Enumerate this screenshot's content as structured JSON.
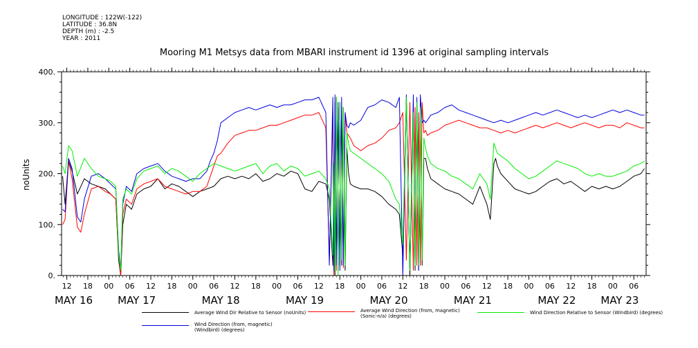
{
  "header": {
    "longitude": "LONGITUDE : 122W(-122)",
    "latitude": "LATITUDE : 36.8N",
    "depth": "DEPTH (m) : -2.5",
    "year": "YEAR : 2011"
  },
  "chart_data": {
    "type": "line",
    "title": "Mooring M1 Metsys data from MBARI instrument id 1396 at original sampling intervals",
    "ylabel": "noUnits",
    "ylim": [
      0,
      400
    ],
    "yticks": [
      0,
      100,
      200,
      300,
      400
    ],
    "ytick_labels": [
      "0.",
      "100.",
      "200.",
      "300.",
      "400."
    ],
    "xlim_hours": [
      10.5,
      177.5
    ],
    "x_unit": "hours since 2011-05-16 00:00",
    "xtick_hour_labels": [
      {
        "h": 12,
        "label": "12"
      },
      {
        "h": 18,
        "label": "18"
      },
      {
        "h": 24,
        "label": "00"
      },
      {
        "h": 30,
        "label": "06"
      },
      {
        "h": 36,
        "label": "12"
      },
      {
        "h": 42,
        "label": "18"
      },
      {
        "h": 48,
        "label": "00"
      },
      {
        "h": 54,
        "label": "06"
      },
      {
        "h": 60,
        "label": "12"
      },
      {
        "h": 66,
        "label": "18"
      },
      {
        "h": 72,
        "label": "00"
      },
      {
        "h": 78,
        "label": "06"
      },
      {
        "h": 84,
        "label": "12"
      },
      {
        "h": 90,
        "label": "18"
      },
      {
        "h": 96,
        "label": "00"
      },
      {
        "h": 102,
        "label": "06"
      },
      {
        "h": 108,
        "label": "12"
      },
      {
        "h": 114,
        "label": "18"
      },
      {
        "h": 120,
        "label": "00"
      },
      {
        "h": 126,
        "label": "06"
      },
      {
        "h": 132,
        "label": "12"
      },
      {
        "h": 138,
        "label": "18"
      },
      {
        "h": 144,
        "label": "00"
      },
      {
        "h": 150,
        "label": "06"
      },
      {
        "h": 156,
        "label": "12"
      },
      {
        "h": 162,
        "label": "18"
      },
      {
        "h": 168,
        "label": "00"
      },
      {
        "h": 174,
        "label": "06"
      }
    ],
    "xdate_labels": [
      {
        "h": 12,
        "label": "MAY 16"
      },
      {
        "h": 30,
        "label": "MAY 17"
      },
      {
        "h": 54,
        "label": "MAY 18"
      },
      {
        "h": 78,
        "label": "MAY 19"
      },
      {
        "h": 102,
        "label": "MAY 20"
      },
      {
        "h": 126,
        "label": "MAY 21"
      },
      {
        "h": 150,
        "label": "MAY 22"
      },
      {
        "h": 168,
        "label": "MAY 23"
      }
    ],
    "series": [
      {
        "name": "Average Wind Dir Relative to Sensor (noUnits)",
        "color": "#000000",
        "x": [
          10.8,
          11.5,
          12.5,
          13.5,
          15,
          17,
          19,
          21,
          23,
          24.5,
          26,
          26.8,
          27.4,
          28,
          29,
          30.5,
          32,
          34,
          36,
          38,
          40,
          42,
          44,
          46,
          48,
          50,
          52,
          54,
          56,
          58,
          60,
          62,
          64,
          66,
          68,
          70,
          72,
          74,
          76,
          78,
          80,
          82,
          84,
          86,
          87,
          88,
          88.3,
          88.6,
          89,
          89.5,
          90,
          90.5,
          91,
          91.5,
          92,
          92.5,
          93,
          94,
          96,
          98,
          100,
          102,
          104,
          106,
          107,
          108,
          109,
          110,
          111,
          111.5,
          112,
          112.5,
          113,
          113.5,
          114,
          114.5,
          115,
          116,
          118,
          120,
          122,
          124,
          126,
          128,
          130,
          132,
          133,
          134,
          134.5,
          135,
          136,
          138,
          140,
          142,
          144,
          146,
          148,
          150,
          152,
          154,
          156,
          158,
          160,
          162,
          164,
          166,
          168,
          170,
          172,
          174,
          176,
          177
        ],
        "y": [
          195,
          140,
          225,
          205,
          160,
          190,
          180,
          175,
          170,
          160,
          150,
          30,
          0,
          100,
          140,
          130,
          160,
          170,
          175,
          190,
          170,
          180,
          175,
          165,
          155,
          165,
          170,
          175,
          190,
          195,
          190,
          195,
          190,
          200,
          185,
          190,
          200,
          195,
          205,
          200,
          170,
          165,
          185,
          180,
          150,
          20,
          200,
          0,
          350,
          10,
          340,
          20,
          330,
          10,
          250,
          200,
          180,
          175,
          170,
          170,
          165,
          155,
          140,
          130,
          120,
          40,
          350,
          0,
          320,
          10,
          340,
          10,
          320,
          20,
          230,
          230,
          210,
          190,
          180,
          170,
          165,
          160,
          150,
          140,
          175,
          140,
          110,
          220,
          230,
          215,
          200,
          185,
          170,
          165,
          160,
          165,
          175,
          185,
          190,
          180,
          185,
          175,
          165,
          175,
          170,
          175,
          170,
          175,
          185,
          195,
          200,
          210
        ]
      },
      {
        "name": "Average Wind Direction (from, magnetic) (Sonic-n/a) (degrees)",
        "color": "#ff0000",
        "x": [
          10.8,
          11.5,
          12.5,
          13.5,
          15,
          16,
          17,
          19,
          21,
          23,
          24.5,
          26,
          26.8,
          27.4,
          28,
          29,
          30.5,
          32,
          34,
          36,
          38,
          40,
          42,
          44,
          46,
          48,
          50,
          52,
          53,
          54,
          55,
          56,
          58,
          60,
          62,
          64,
          66,
          68,
          70,
          72,
          74,
          76,
          78,
          80,
          82,
          84,
          86,
          87,
          88,
          88.3,
          88.6,
          89,
          89.5,
          90,
          90.5,
          91,
          91.5,
          92,
          92.5,
          93,
          94,
          96,
          98,
          100,
          102,
          104,
          106,
          107,
          108,
          109,
          110,
          111,
          111.5,
          112,
          112.5,
          113,
          113.5,
          114,
          114.5,
          115,
          116,
          118,
          120,
          122,
          124,
          126,
          128,
          130,
          132,
          134,
          136,
          138,
          140,
          142,
          144,
          146,
          148,
          150,
          152,
          154,
          156,
          158,
          160,
          162,
          164,
          166,
          168,
          170,
          172,
          174,
          176,
          177
        ],
        "y": [
          100,
          110,
          225,
          190,
          95,
          85,
          120,
          170,
          175,
          165,
          160,
          150,
          40,
          0,
          120,
          150,
          140,
          170,
          180,
          185,
          190,
          175,
          170,
          165,
          160,
          165,
          165,
          175,
          195,
          215,
          235,
          240,
          260,
          275,
          280,
          285,
          285,
          290,
          295,
          295,
          300,
          305,
          310,
          315,
          315,
          320,
          290,
          30,
          320,
          0,
          340,
          10,
          330,
          20,
          330,
          15,
          320,
          280,
          275,
          270,
          255,
          245,
          255,
          260,
          270,
          285,
          290,
          300,
          320,
          30,
          340,
          10,
          330,
          20,
          320,
          20,
          340,
          280,
          285,
          275,
          280,
          285,
          295,
          300,
          305,
          300,
          295,
          290,
          290,
          285,
          280,
          285,
          280,
          285,
          290,
          295,
          290,
          295,
          300,
          295,
          290,
          295,
          300,
          295,
          290,
          295,
          295,
          290,
          300,
          295,
          290,
          290
        ]
      },
      {
        "name": "Wind Direction Relative to Sensor (Windbird) (degrees)",
        "color": "#00ee00",
        "x": [
          10.8,
          11.5,
          12.5,
          13.5,
          15,
          17,
          19,
          21,
          23,
          24.5,
          26,
          26.8,
          27.4,
          28,
          29,
          30.5,
          32,
          34,
          36,
          38,
          40,
          42,
          44,
          46,
          48,
          50,
          52,
          54,
          56,
          58,
          60,
          62,
          64,
          66,
          68,
          70,
          72,
          74,
          76,
          78,
          80,
          82,
          84,
          86,
          87,
          88,
          88.3,
          88.6,
          89,
          89.5,
          90,
          90.5,
          91,
          91.5,
          92,
          92.5,
          93,
          94,
          96,
          98,
          100,
          102,
          104,
          106,
          107,
          108,
          109,
          110,
          111,
          111.5,
          112,
          112.5,
          113,
          113.5,
          114,
          114.5,
          115,
          116,
          118,
          120,
          122,
          124,
          126,
          128,
          130,
          132,
          133,
          134,
          134.5,
          135,
          136,
          138,
          140,
          142,
          144,
          146,
          148,
          150,
          152,
          154,
          156,
          158,
          160,
          162,
          164,
          166,
          168,
          170,
          172,
          174,
          176,
          177
        ],
        "y": [
          215,
          200,
          255,
          245,
          195,
          230,
          210,
          195,
          190,
          185,
          175,
          40,
          10,
          150,
          170,
          160,
          190,
          205,
          210,
          215,
          200,
          210,
          205,
          195,
          185,
          200,
          210,
          220,
          215,
          210,
          205,
          210,
          215,
          220,
          200,
          215,
          220,
          205,
          215,
          210,
          195,
          200,
          205,
          190,
          170,
          40,
          220,
          10,
          350,
          0,
          340,
          30,
          330,
          20,
          280,
          260,
          245,
          240,
          230,
          220,
          210,
          200,
          185,
          150,
          140,
          60,
          350,
          10,
          320,
          20,
          340,
          20,
          330,
          30,
          270,
          250,
          235,
          220,
          210,
          205,
          195,
          190,
          180,
          170,
          200,
          180,
          150,
          260,
          250,
          240,
          235,
          225,
          210,
          200,
          190,
          195,
          205,
          215,
          225,
          220,
          215,
          210,
          200,
          195,
          200,
          195,
          195,
          200,
          205,
          215,
          220,
          225
        ]
      },
      {
        "name": "Wind Direction (from, magnetic) (Windbird) (degrees)",
        "color": "#0000dd",
        "x": [
          10.8,
          11.5,
          12.5,
          13.5,
          15,
          16,
          17,
          19,
          21,
          23,
          24.5,
          26,
          26.8,
          27.4,
          28,
          29,
          30.5,
          32,
          34,
          36,
          38,
          40,
          42,
          44,
          46,
          48,
          50,
          52,
          53,
          54,
          55,
          56,
          58,
          60,
          62,
          64,
          66,
          68,
          70,
          72,
          74,
          76,
          78,
          80,
          82,
          84,
          86,
          87,
          88,
          88.3,
          88.6,
          89,
          89.5,
          90,
          90.5,
          91,
          91.5,
          92,
          92.5,
          93,
          94,
          96,
          98,
          100,
          102,
          104,
          106,
          107,
          108,
          109,
          110,
          111,
          111.5,
          112,
          112.5,
          113,
          113.5,
          114,
          114.5,
          115,
          116,
          118,
          120,
          122,
          124,
          126,
          128,
          130,
          132,
          134,
          136,
          138,
          140,
          142,
          144,
          146,
          148,
          150,
          152,
          154,
          156,
          158,
          160,
          162,
          164,
          166,
          168,
          170,
          172,
          174,
          176,
          177
        ],
        "y": [
          130,
          125,
          230,
          210,
          115,
          105,
          150,
          195,
          200,
          190,
          180,
          170,
          50,
          10,
          140,
          175,
          165,
          200,
          210,
          215,
          220,
          205,
          195,
          190,
          185,
          190,
          190,
          205,
          225,
          240,
          265,
          300,
          310,
          320,
          325,
          330,
          325,
          330,
          335,
          330,
          335,
          335,
          340,
          345,
          345,
          350,
          320,
          20,
          350,
          10,
          355,
          20,
          340,
          10,
          350,
          20,
          320,
          295,
          290,
          300,
          295,
          305,
          330,
          335,
          345,
          340,
          330,
          350,
          0,
          355,
          10,
          355,
          20,
          350,
          10,
          355,
          300,
          305,
          300,
          305,
          315,
          320,
          330,
          335,
          325,
          320,
          315,
          310,
          305,
          300,
          305,
          300,
          305,
          310,
          315,
          320,
          315,
          320,
          325,
          320,
          315,
          310,
          315,
          310,
          315,
          320,
          325,
          320,
          325,
          320,
          315,
          315
        ]
      }
    ]
  }
}
